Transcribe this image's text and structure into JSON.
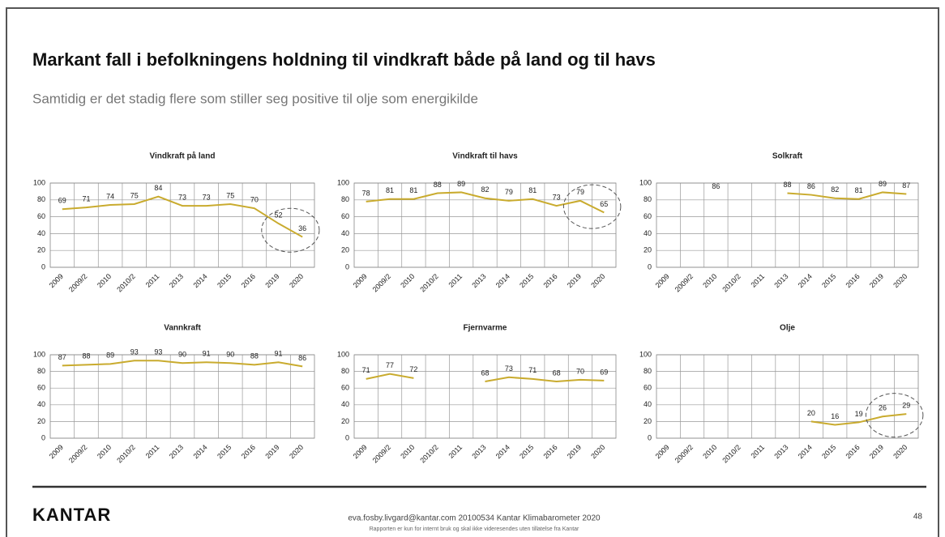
{
  "slide": {
    "title": "Markant fall i befolkningens holdning til vindkraft både på land og til havs",
    "subtitle": "Samtidig er det stadig flere som stiller seg positive til olje som energikilde",
    "logo": "KANTAR",
    "footer": "eva.fosby.livgard@kantar.com 20100534 Kantar Klimabarometer 2020",
    "footer_note": "Rapporten er kun for internt bruk og skal ikke videresendes uten tillatelse fra Kantar",
    "page": "48"
  },
  "chart_data": [
    {
      "type": "line",
      "title": "Vindkraft på land",
      "color": "#c9ab2e",
      "grid": true,
      "categories": [
        "2009",
        "2009/2",
        "2010",
        "2010/2",
        "2011",
        "2013",
        "2014",
        "2015",
        "2016",
        "2019",
        "2020"
      ],
      "values": [
        69,
        71,
        74,
        75,
        84,
        73,
        73,
        75,
        70,
        52,
        36
      ],
      "ylim": [
        0,
        100
      ],
      "yticks": [
        0,
        20,
        40,
        60,
        80,
        100
      ]
    },
    {
      "type": "line",
      "title": "Vindkraft til havs",
      "color": "#c9ab2e",
      "grid": true,
      "categories": [
        "2009",
        "2009/2",
        "2010",
        "2010/2",
        "2011",
        "2013",
        "2014",
        "2015",
        "2016",
        "2019",
        "2020"
      ],
      "values": [
        78,
        81,
        81,
        88,
        89,
        82,
        79,
        81,
        73,
        79,
        65
      ],
      "ylim": [
        0,
        100
      ],
      "yticks": [
        0,
        20,
        40,
        60,
        80,
        100
      ]
    },
    {
      "type": "line",
      "title": "Solkraft",
      "color": "#c9ab2e",
      "grid": true,
      "categories": [
        "2009",
        "2009/2",
        "2010",
        "2010/2",
        "2011",
        "2013",
        "2014",
        "2015",
        "2016",
        "2019",
        "2020"
      ],
      "values": [
        null,
        null,
        86,
        null,
        null,
        88,
        86,
        82,
        81,
        89,
        87
      ],
      "ylim": [
        0,
        100
      ],
      "yticks": [
        0,
        20,
        40,
        60,
        80,
        100
      ]
    },
    {
      "type": "line",
      "title": "Vannkraft",
      "color": "#c9ab2e",
      "grid": true,
      "categories": [
        "2009",
        "2009/2",
        "2010",
        "2010/2",
        "2011",
        "2013",
        "2014",
        "2015",
        "2016",
        "2019",
        "2020"
      ],
      "values": [
        87,
        88,
        89,
        93,
        93,
        90,
        91,
        90,
        88,
        91,
        86
      ],
      "ylim": [
        0,
        100
      ],
      "yticks": [
        0,
        20,
        40,
        60,
        80,
        100
      ]
    },
    {
      "type": "line",
      "title": "Fjernvarme",
      "color": "#c9ab2e",
      "grid": true,
      "categories": [
        "2009",
        "2009/2",
        "2010",
        "2010/2",
        "2011",
        "2013",
        "2014",
        "2015",
        "2016",
        "2019",
        "2020"
      ],
      "values": [
        71,
        77,
        72,
        null,
        null,
        68,
        73,
        71,
        68,
        70,
        69
      ],
      "ylim": [
        0,
        100
      ],
      "yticks": [
        0,
        20,
        40,
        60,
        80,
        100
      ]
    },
    {
      "type": "line",
      "title": "Olje",
      "color": "#c9ab2e",
      "grid": true,
      "categories": [
        "2009",
        "2009/2",
        "2010",
        "2010/2",
        "2011",
        "2013",
        "2014",
        "2015",
        "2016",
        "2019",
        "2020"
      ],
      "values": [
        null,
        null,
        null,
        null,
        null,
        null,
        20,
        16,
        19,
        26,
        29
      ],
      "ylim": [
        0,
        100
      ],
      "yticks": [
        0,
        20,
        40,
        60,
        80,
        100
      ]
    }
  ]
}
